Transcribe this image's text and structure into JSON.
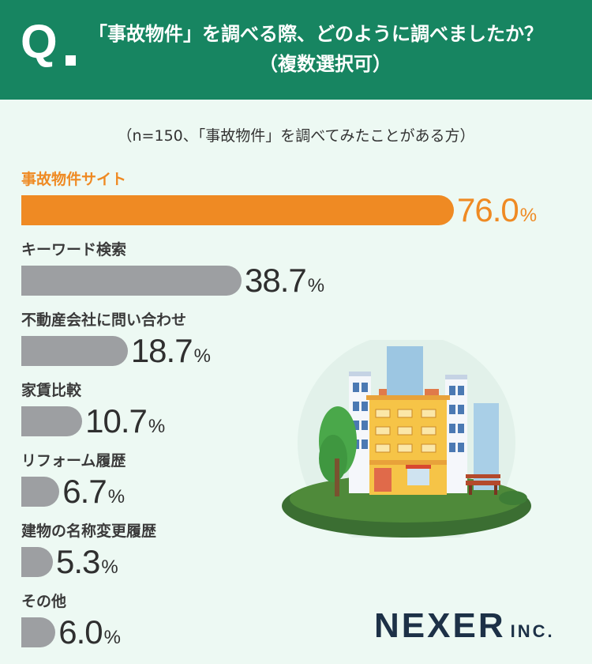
{
  "header": {
    "q_mark": "Q",
    "question_line1": "「事故物件」を調べる際、どのように調べましたか？",
    "question_line2": "（複数選択可）"
  },
  "note": "（n=150、「事故物件」を調べてみたことがある方）",
  "colors": {
    "header_bg": "#178561",
    "highlight": "#ef8a23",
    "bar": "#9d9fa2",
    "background": "#edf9f3"
  },
  "chart_data": {
    "type": "bar",
    "orientation": "horizontal",
    "unit": "%",
    "xlim": [
      0,
      76
    ],
    "categories": [
      "事故物件サイト",
      "キーワード検索",
      "不動産会社に問い合わせ",
      "家賃比較",
      "リフォーム履歴",
      "建物の名称変更履歴",
      "その他"
    ],
    "values": [
      76.0,
      38.7,
      18.7,
      10.7,
      6.7,
      5.3,
      6.0
    ],
    "value_labels": [
      "76.0",
      "38.7",
      "18.7",
      "10.7",
      "6.7",
      "5.3",
      "6.0"
    ],
    "highlight_index": 0
  },
  "logo": {
    "name": "NEXER",
    "suffix": "INC."
  }
}
